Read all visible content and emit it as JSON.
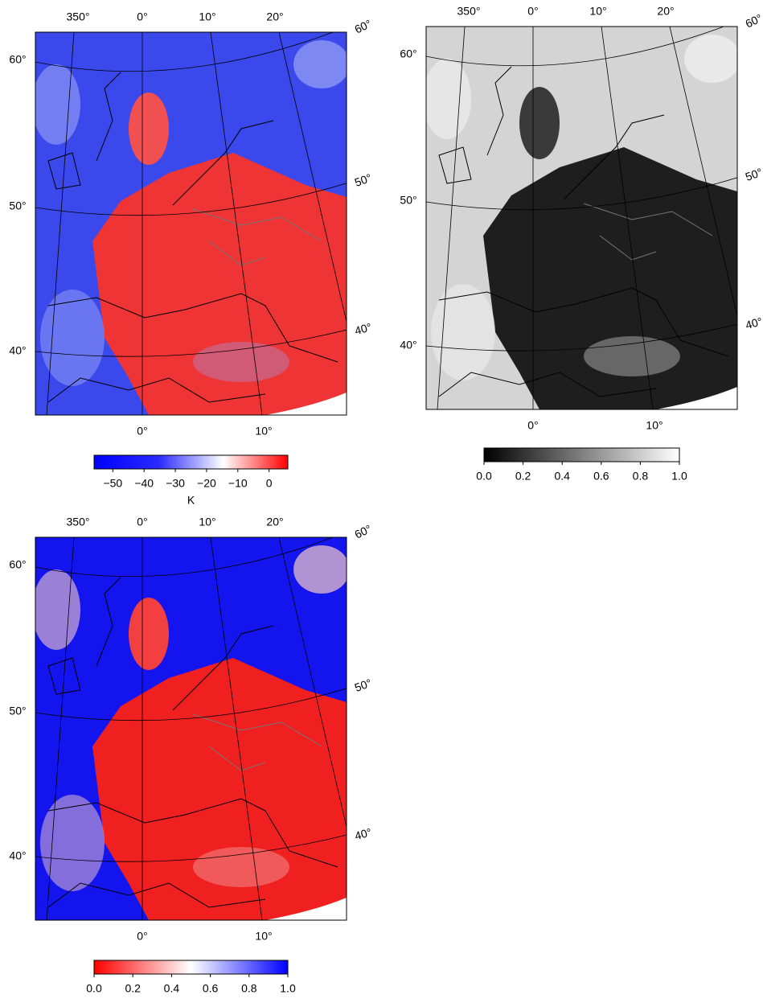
{
  "panels": [
    {
      "lon_top": [
        "350°",
        "0°",
        "10°",
        "20°"
      ],
      "lat_right": [
        "60°",
        "50°",
        "40°"
      ],
      "lat_left": [
        "60°",
        "50°",
        "40°"
      ],
      "lon_bottom": [
        "0°",
        "10°"
      ],
      "colorbar": {
        "lim": [
          -56,
          6
        ],
        "colors": [
          "#0000ff",
          "#2a2aff",
          "#ffffff",
          "#ff0000"
        ],
        "ticks": [
          {
            "value": -50,
            "label": "−50"
          },
          {
            "value": -40,
            "label": "−40"
          },
          {
            "value": -30,
            "label": "−30"
          },
          {
            "value": -20,
            "label": "−20"
          },
          {
            "value": -10,
            "label": "−10"
          },
          0
        ],
        "label": "K"
      }
    },
    {
      "lon_top": [
        "350°",
        "0°",
        "10°",
        "20°"
      ],
      "lat_right": [
        "60°",
        "50°",
        "40°"
      ],
      "lat_left": [
        "60°",
        "50°",
        "40°"
      ],
      "lon_bottom": [
        "0°",
        "10°"
      ],
      "colorbar": {
        "lim": [
          0,
          1
        ],
        "colors": [
          "#000000",
          "#ffffff"
        ],
        "ticks": [
          {
            "value": 0,
            "label": "0.0"
          },
          0.2,
          0.4,
          0.6,
          0.8,
          {
            "value": 1,
            "label": "1.0"
          }
        ]
      }
    },
    {
      "lon_top": [
        "350°",
        "0°",
        "10°",
        "20°"
      ],
      "lat_right": [
        "60°",
        "50°",
        "40°"
      ],
      "lat_left": [
        "60°",
        "50°",
        "40°"
      ],
      "lon_bottom": [
        "0°",
        "10°"
      ],
      "colorbar": {
        "lim": [
          0,
          1
        ],
        "colors": [
          "#ff0000",
          "#ffffff",
          "#0000ff"
        ],
        "ticks": [
          {
            "value": 0,
            "label": "0.0"
          },
          0.2,
          0.4,
          0.6,
          0.8,
          {
            "value": 1,
            "label": "1.0"
          }
        ]
      }
    }
  ]
}
